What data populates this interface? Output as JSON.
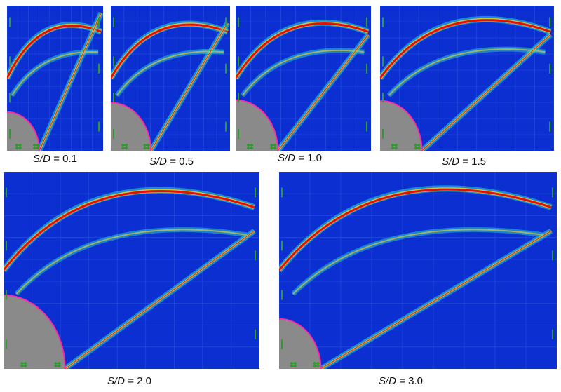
{
  "panels": [
    {
      "id": "p1",
      "label_var": "S/D",
      "label_value": "= 0.1"
    },
    {
      "id": "p2",
      "label_var": "S/D",
      "label_value": "=  0.5"
    },
    {
      "id": "p3",
      "label_var": "S/D",
      "label_value": "= 1.0"
    },
    {
      "id": "p4",
      "label_var": "S/D",
      "label_value": "= 1.5"
    },
    {
      "id": "p5",
      "label_var": "S/D",
      "label_value": "= 2.0"
    },
    {
      "id": "p6",
      "label_var": "S/D",
      "label_value": "= 3.0"
    }
  ],
  "colors": {
    "background_field": "#0b2fd0",
    "cylinder": "#8a8a8a",
    "cylinder_edge": "#ff2aa6",
    "shock_hot": "#e01010",
    "shock_warm": "#ffd21a",
    "shock_cool": "#27d6d6",
    "grid": "#3f6ff0",
    "markers": "#2e9b2e"
  }
}
